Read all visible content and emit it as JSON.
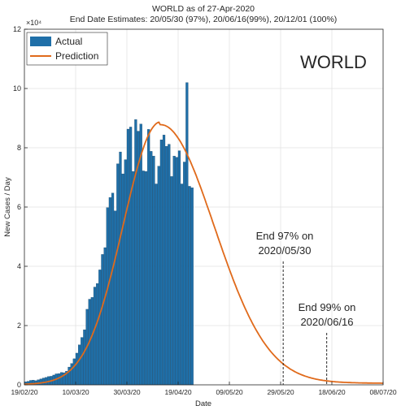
{
  "chart_data": {
    "type": "bar",
    "title": "WORLD as of 27-Apr-2020",
    "subtitle": "End Date Estimates: 20/05/30 (97%), 20/06/16(99%), 20/12/01 (100%)",
    "xlabel": "Date",
    "ylabel": "New Cases / Day",
    "y_multiplier_label": "×10⁴",
    "region_label": "WORLD",
    "xlim_dates": [
      "2020-02-19",
      "2020-07-08"
    ],
    "ylim": [
      0,
      120000
    ],
    "y_ticks": [
      0,
      20000,
      40000,
      60000,
      80000,
      100000,
      120000
    ],
    "y_tick_labels": [
      "0",
      "2",
      "4",
      "6",
      "8",
      "10",
      "12"
    ],
    "x_ticks": [
      {
        "date": "2020-02-19",
        "label": "19/02/20"
      },
      {
        "date": "2020-03-10",
        "label": "10/03/20"
      },
      {
        "date": "2020-03-30",
        "label": "30/03/20"
      },
      {
        "date": "2020-04-19",
        "label": "19/04/20"
      },
      {
        "date": "2020-05-09",
        "label": "09/05/20"
      },
      {
        "date": "2020-05-29",
        "label": "29/05/20"
      },
      {
        "date": "2020-06-18",
        "label": "18/06/20"
      },
      {
        "date": "2020-07-08",
        "label": "08/07/20"
      }
    ],
    "grid": true,
    "legend_position": "top-left",
    "series": [
      {
        "name": "Actual",
        "kind": "bar",
        "color": "#1f6fa8",
        "start_date": "2020-02-19",
        "values": [
          1000,
          1200,
          1500,
          1600,
          1400,
          1700,
          2000,
          2300,
          2500,
          2800,
          2900,
          3300,
          3700,
          3800,
          4200,
          4100,
          4600,
          6000,
          7200,
          8800,
          10700,
          13500,
          16000,
          18600,
          25500,
          28900,
          29500,
          33000,
          34200,
          38800,
          44000,
          46300,
          59800,
          63200,
          64700,
          58700,
          74600,
          78600,
          71200,
          76000,
          86300,
          87000,
          72000,
          89500,
          85600,
          88000,
          72200,
          72000,
          86200,
          78800,
          77200,
          67800,
          73800,
          82700,
          84300,
          80500,
          81200,
          70300,
          77200,
          76800,
          79000,
          67800,
          75200,
          102000,
          67000,
          66500
        ]
      },
      {
        "name": "Prediction",
        "kind": "line",
        "color": "#e06a1b",
        "peak_date": "2020-04-12",
        "peak_value": 87800,
        "sigma_left_days": 14.5,
        "sigma_right_days": 21.0,
        "tail_value": 1200,
        "tail_days": 33
      }
    ],
    "annotations": [
      {
        "date": "2020-05-30",
        "lines": [
          "End 97% on",
          "2020/05/30"
        ]
      },
      {
        "date": "2020-06-16",
        "lines": [
          "End 99% on",
          "2020/06/16"
        ]
      }
    ]
  }
}
